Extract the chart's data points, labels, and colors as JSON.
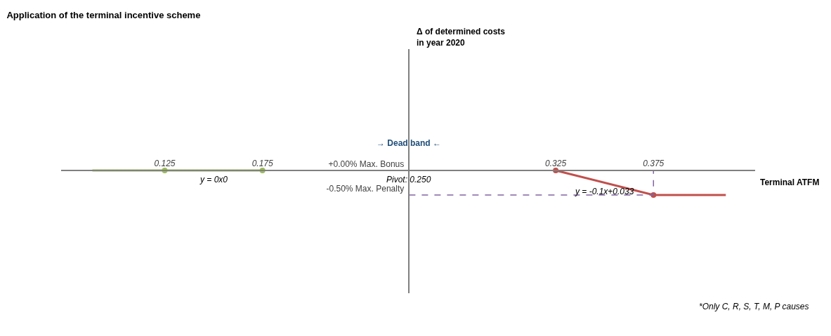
{
  "chart_data": {
    "type": "line",
    "title": "Application of the terminal incentive scheme",
    "xlabel": "Terminal ATFM",
    "ylabel": "Δ of determined costs\nin year 2020",
    "xlim": [
      0.072,
      0.427
    ],
    "ylim": [
      -2.5,
      2.47
    ],
    "xticks": [
      0.125,
      0.175,
      0.325,
      0.375
    ],
    "yticks": [
      {
        "value": 0,
        "label": "+0.00% Max. Bonus"
      },
      {
        "value": -0.5,
        "label": "-0.50% Max. Penalty"
      }
    ],
    "series": [
      {
        "color": "#9bbb59",
        "x": [
          0.088,
          0.175
        ],
        "values": [
          0,
          0
        ],
        "marker": "none",
        "line_style": "solid"
      },
      {
        "color": "#9bbb59",
        "x": [
          0.125,
          0.175
        ],
        "values": [
          0,
          0
        ],
        "type": "scatter",
        "marker": "circle"
      },
      {
        "color": "#c0504d",
        "x": [
          0.325,
          0.375,
          0.412
        ],
        "values": [
          0,
          -0.5,
          -0.5
        ],
        "marker": "none",
        "line_style": "solid"
      },
      {
        "color": "#c0504d",
        "x": [
          0.325,
          0.375
        ],
        "values": [
          0,
          -0.5
        ],
        "type": "scatter",
        "marker": "circle"
      },
      {
        "color": "#8064a2",
        "x": [
          0.25,
          0.375,
          0.375
        ],
        "values": [
          -0.5,
          -0.5,
          0
        ],
        "marker": "none",
        "line_style": "dashed"
      }
    ],
    "annotations": [
      {
        "text": "y = 0x0",
        "x": 0.15,
        "y": 0
      },
      {
        "text": "y = -0.1x+0.033",
        "x": 0.35,
        "y": -0.25
      },
      "→ Dead band ←",
      "Pivot: 0.250",
      "*Only C, R, S, T, M, P causes"
    ]
  }
}
